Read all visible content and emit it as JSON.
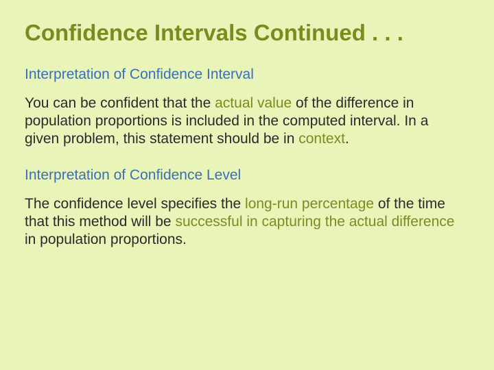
{
  "colors": {
    "background": "#e8f4b8",
    "title": "#7a8c1f",
    "subheading": "#3a6fb7",
    "bodyText": "#2a2a2a",
    "highlight": "#7a8c1f"
  },
  "typography": {
    "fontFamily": "Comic Sans MS",
    "titleSize": 33,
    "subheadingSize": 21,
    "bodySize": 21
  },
  "title": "Confidence Intervals Continued . . .",
  "sections": [
    {
      "heading": "Interpretation of Confidence Interval",
      "body": {
        "pre1": "You can be confident that the ",
        "hl1": "actual value",
        "mid1": " of the difference in population proportions is included in the computed interval.  In a given problem, this statement should be in ",
        "hl2": "context",
        "post": "."
      }
    },
    {
      "heading": "Interpretation of Confidence Level",
      "body": {
        "pre1": "The confidence level specifies the ",
        "hl1": "long-run percentage",
        "mid1": " of the time that this method will be ",
        "hl2": "successful in capturing the actual difference",
        "post": " in population proportions."
      }
    }
  ]
}
